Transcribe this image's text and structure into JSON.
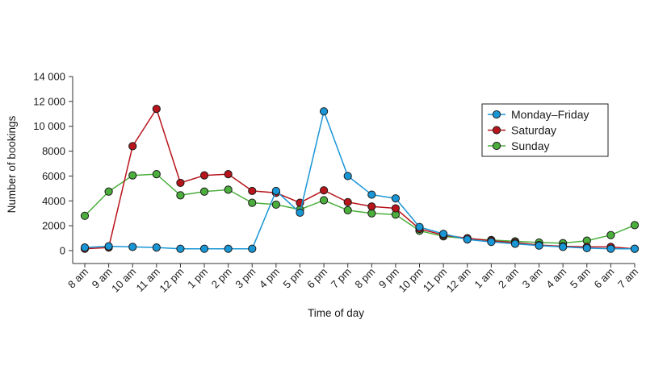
{
  "chart_data": {
    "type": "line",
    "xlabel": "Time of day",
    "ylabel": "Number of bookings",
    "ylim": [
      0,
      14000
    ],
    "yticks": [
      0,
      2000,
      4000,
      6000,
      8000,
      10000,
      12000,
      14000
    ],
    "ytick_labels": [
      "0",
      "2000",
      "4000",
      "6000",
      "8000",
      "10 000",
      "12 000",
      "14 000"
    ],
    "categories": [
      "8 am",
      "9 am",
      "10 am",
      "11 am",
      "12 pm",
      "1 pm",
      "2 pm",
      "3 pm",
      "4 pm",
      "5 pm",
      "6 pm",
      "7 pm",
      "8 pm",
      "9 pm",
      "10 pm",
      "11 pm",
      "12 am",
      "1 am",
      "2 am",
      "3 am",
      "4 am",
      "5 am",
      "6 am",
      "7 am"
    ],
    "legend_position": "top-right",
    "grid": false,
    "series": [
      {
        "name": "Sunday",
        "color": "#4caf3d",
        "values": [
          2800,
          4750,
          6050,
          6150,
          4450,
          4750,
          4900,
          3850,
          3700,
          3300,
          4050,
          3250,
          3000,
          2900,
          1600,
          1150,
          950,
          850,
          750,
          650,
          600,
          800,
          1250,
          2050
        ]
      },
      {
        "name": "Saturday",
        "color": "#b8141b",
        "values": [
          150,
          250,
          8400,
          11400,
          5450,
          6050,
          6150,
          4800,
          4650,
          3850,
          4850,
          3900,
          3550,
          3400,
          1750,
          1250,
          1000,
          800,
          650,
          450,
          350,
          300,
          300,
          150
        ]
      },
      {
        "name": "Monday–Friday",
        "color": "#1996d6",
        "values": [
          250,
          350,
          300,
          250,
          150,
          150,
          150,
          150,
          4800,
          3050,
          11200,
          6000,
          4500,
          4200,
          1900,
          1350,
          900,
          700,
          550,
          400,
          300,
          200,
          150,
          150
        ]
      }
    ],
    "legend_order": [
      "Monday–Friday",
      "Saturday",
      "Sunday"
    ]
  }
}
